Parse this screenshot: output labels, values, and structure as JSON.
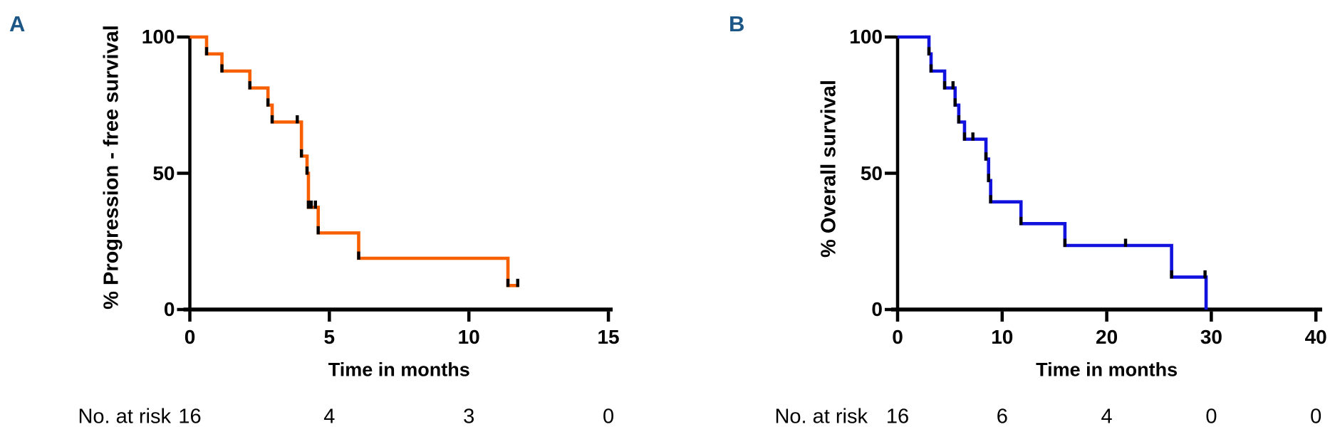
{
  "figure_background": "#ffffff",
  "chart_data": [
    {
      "panel_letter": "A",
      "letter_color": "#1c5687",
      "type": "line",
      "subtype": "kaplan-meier-step",
      "title": "",
      "ylabel": "% Progression - free survival",
      "xlabel": "Time in months",
      "line_color": "#f85f00",
      "censor_tick_color": "#000000",
      "axis_color": "#000000",
      "xlim": [
        0,
        15
      ],
      "ylim": [
        0,
        100
      ],
      "xticks": [
        0,
        5,
        10,
        15
      ],
      "yticks": [
        100,
        50,
        0
      ],
      "grid": false,
      "legend": null,
      "km_steps": [
        [
          0,
          100
        ],
        [
          0.6,
          93.8
        ],
        [
          1.15,
          87.5
        ],
        [
          2.15,
          81.3
        ],
        [
          2.8,
          75
        ],
        [
          2.95,
          68.8
        ],
        [
          4.0,
          56.3
        ],
        [
          4.2,
          50
        ],
        [
          4.25,
          37.5
        ],
        [
          4.6,
          28.1
        ],
        [
          6.05,
          18.8
        ],
        [
          11.4,
          8.8
        ],
        [
          11.8,
          8.8
        ]
      ],
      "censor_ticks": [
        [
          3.85,
          68.8
        ],
        [
          4.35,
          37.5
        ],
        [
          4.5,
          37.5
        ],
        [
          11.75,
          8.8
        ]
      ],
      "at_risk": {
        "label": "No. at risk",
        "times": [
          0,
          5,
          10,
          15
        ],
        "counts": [
          16,
          4,
          3,
          0
        ]
      }
    },
    {
      "panel_letter": "B",
      "letter_color": "#1c5687",
      "type": "line",
      "subtype": "kaplan-meier-step",
      "title": "",
      "ylabel": "% Overall survival",
      "xlabel": "Time in months",
      "line_color": "#1212df",
      "censor_tick_color": "#000000",
      "axis_color": "#000000",
      "xlim": [
        0,
        40
      ],
      "ylim": [
        0,
        100
      ],
      "xticks": [
        0,
        10,
        20,
        30,
        40
      ],
      "yticks": [
        100,
        50,
        0
      ],
      "grid": false,
      "legend": null,
      "km_steps": [
        [
          0,
          100
        ],
        [
          3.0,
          93.8
        ],
        [
          3.2,
          87.5
        ],
        [
          4.5,
          81.3
        ],
        [
          5.5,
          75
        ],
        [
          5.85,
          68.8
        ],
        [
          6.4,
          62.5
        ],
        [
          8.45,
          55.2
        ],
        [
          8.7,
          47.3
        ],
        [
          8.9,
          39.5
        ],
        [
          11.8,
          31.5
        ],
        [
          16.0,
          23.5
        ],
        [
          26.2,
          11.9
        ],
        [
          29.5,
          0
        ]
      ],
      "censor_ticks": [
        [
          5.3,
          81.3
        ],
        [
          7.2,
          62.5
        ],
        [
          21.8,
          23.5
        ],
        [
          29.4,
          11.9
        ]
      ],
      "at_risk": {
        "label": "No. at risk",
        "times": [
          0,
          10,
          20,
          30,
          40
        ],
        "counts": [
          16,
          6,
          4,
          0,
          0
        ]
      }
    }
  ]
}
